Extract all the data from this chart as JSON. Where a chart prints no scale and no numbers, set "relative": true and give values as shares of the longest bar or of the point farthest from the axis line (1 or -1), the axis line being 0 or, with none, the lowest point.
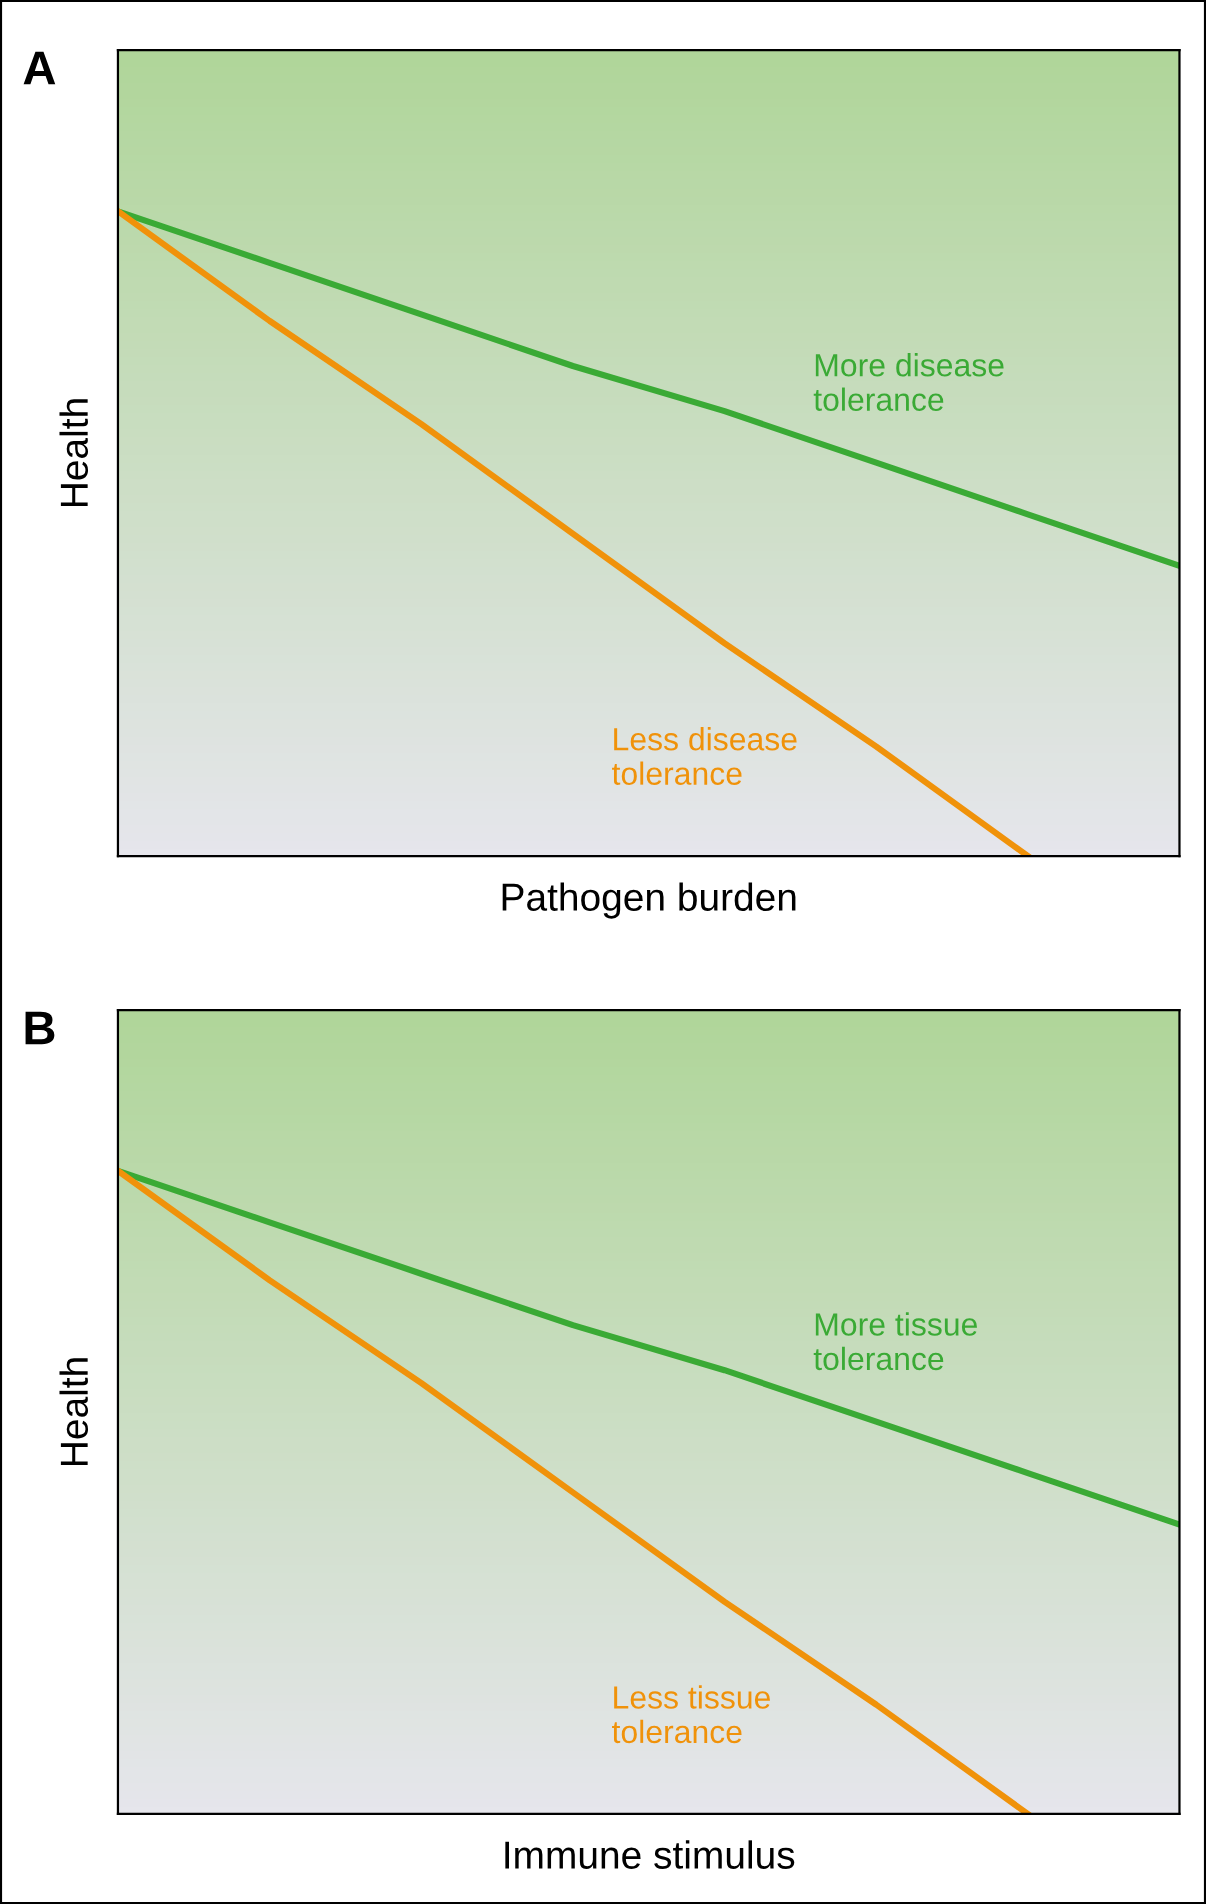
{
  "chart_data": [
    {
      "type": "line",
      "relative": true,
      "xlabel": "Pathogen burden",
      "ylabel": "Health",
      "annotations": [
        "A"
      ],
      "legend": false,
      "categories": [
        null,
        null,
        null,
        null,
        null,
        null,
        null,
        null
      ],
      "series": [
        {
          "name": "More disease\ntolerance",
          "color": "#3aaa35",
          "values": [
            1,
            0.92,
            0.84,
            0.76,
            0.69,
            0.61,
            0.53,
            0.45
          ]
        },
        {
          "name": "Less disease\ntolerance",
          "color": "#f0920a",
          "values": [
            1,
            0.83,
            0.67,
            0.5,
            0.33,
            0.17,
            0,
            null
          ]
        }
      ]
    },
    {
      "type": "line",
      "relative": true,
      "xlabel": "Immune stimulus",
      "ylabel": "Health",
      "annotations": [
        "B"
      ],
      "legend": false,
      "categories": [
        null,
        null,
        null,
        null,
        null,
        null,
        null,
        null
      ],
      "series": [
        {
          "name": "More tissue\ntolerance",
          "color": "#3aaa35",
          "values": [
            1,
            0.92,
            0.84,
            0.76,
            0.69,
            0.61,
            0.53,
            0.45
          ]
        },
        {
          "name": "Less tissue\ntolerance",
          "color": "#f0920a",
          "values": [
            1,
            0.83,
            0.67,
            0.5,
            0.33,
            0.17,
            0,
            null
          ]
        }
      ]
    }
  ]
}
